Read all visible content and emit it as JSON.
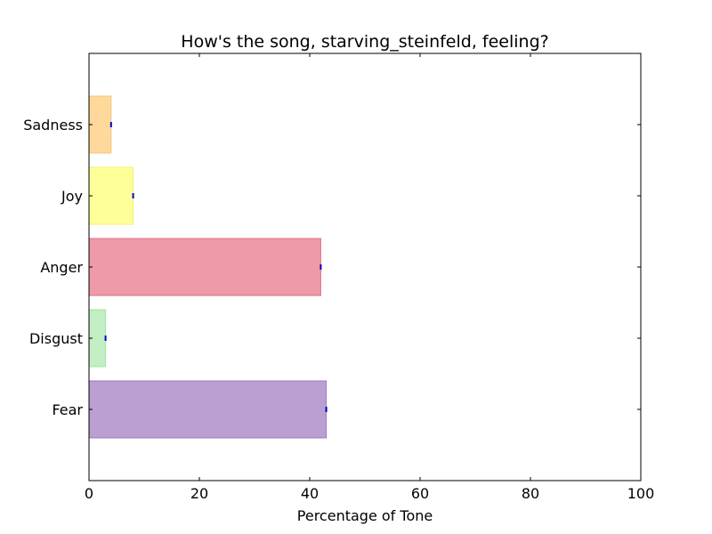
{
  "chart_data": {
    "type": "bar",
    "orientation": "horizontal",
    "title": "How's the song, starving_steinfeld, feeling?",
    "xlabel": "Percentage of Tone",
    "ylabel": "",
    "xlim": [
      0,
      100
    ],
    "xticks": [
      "0",
      "20",
      "40",
      "60",
      "80",
      "100"
    ],
    "categories": [
      "Fear",
      "Disgust",
      "Anger",
      "Joy",
      "Sadness"
    ],
    "values": [
      43,
      3,
      42,
      8,
      4
    ],
    "colors": [
      "#b9a0d0",
      "#c3edc3",
      "#ee9aa8",
      "#ffff99",
      "#fed99b"
    ],
    "edge_colors": [
      "#9f77c7",
      "#a5e3a5",
      "#e06f83",
      "#f0f07a",
      "#f2c57a"
    ],
    "grid": false,
    "legend": "none"
  }
}
